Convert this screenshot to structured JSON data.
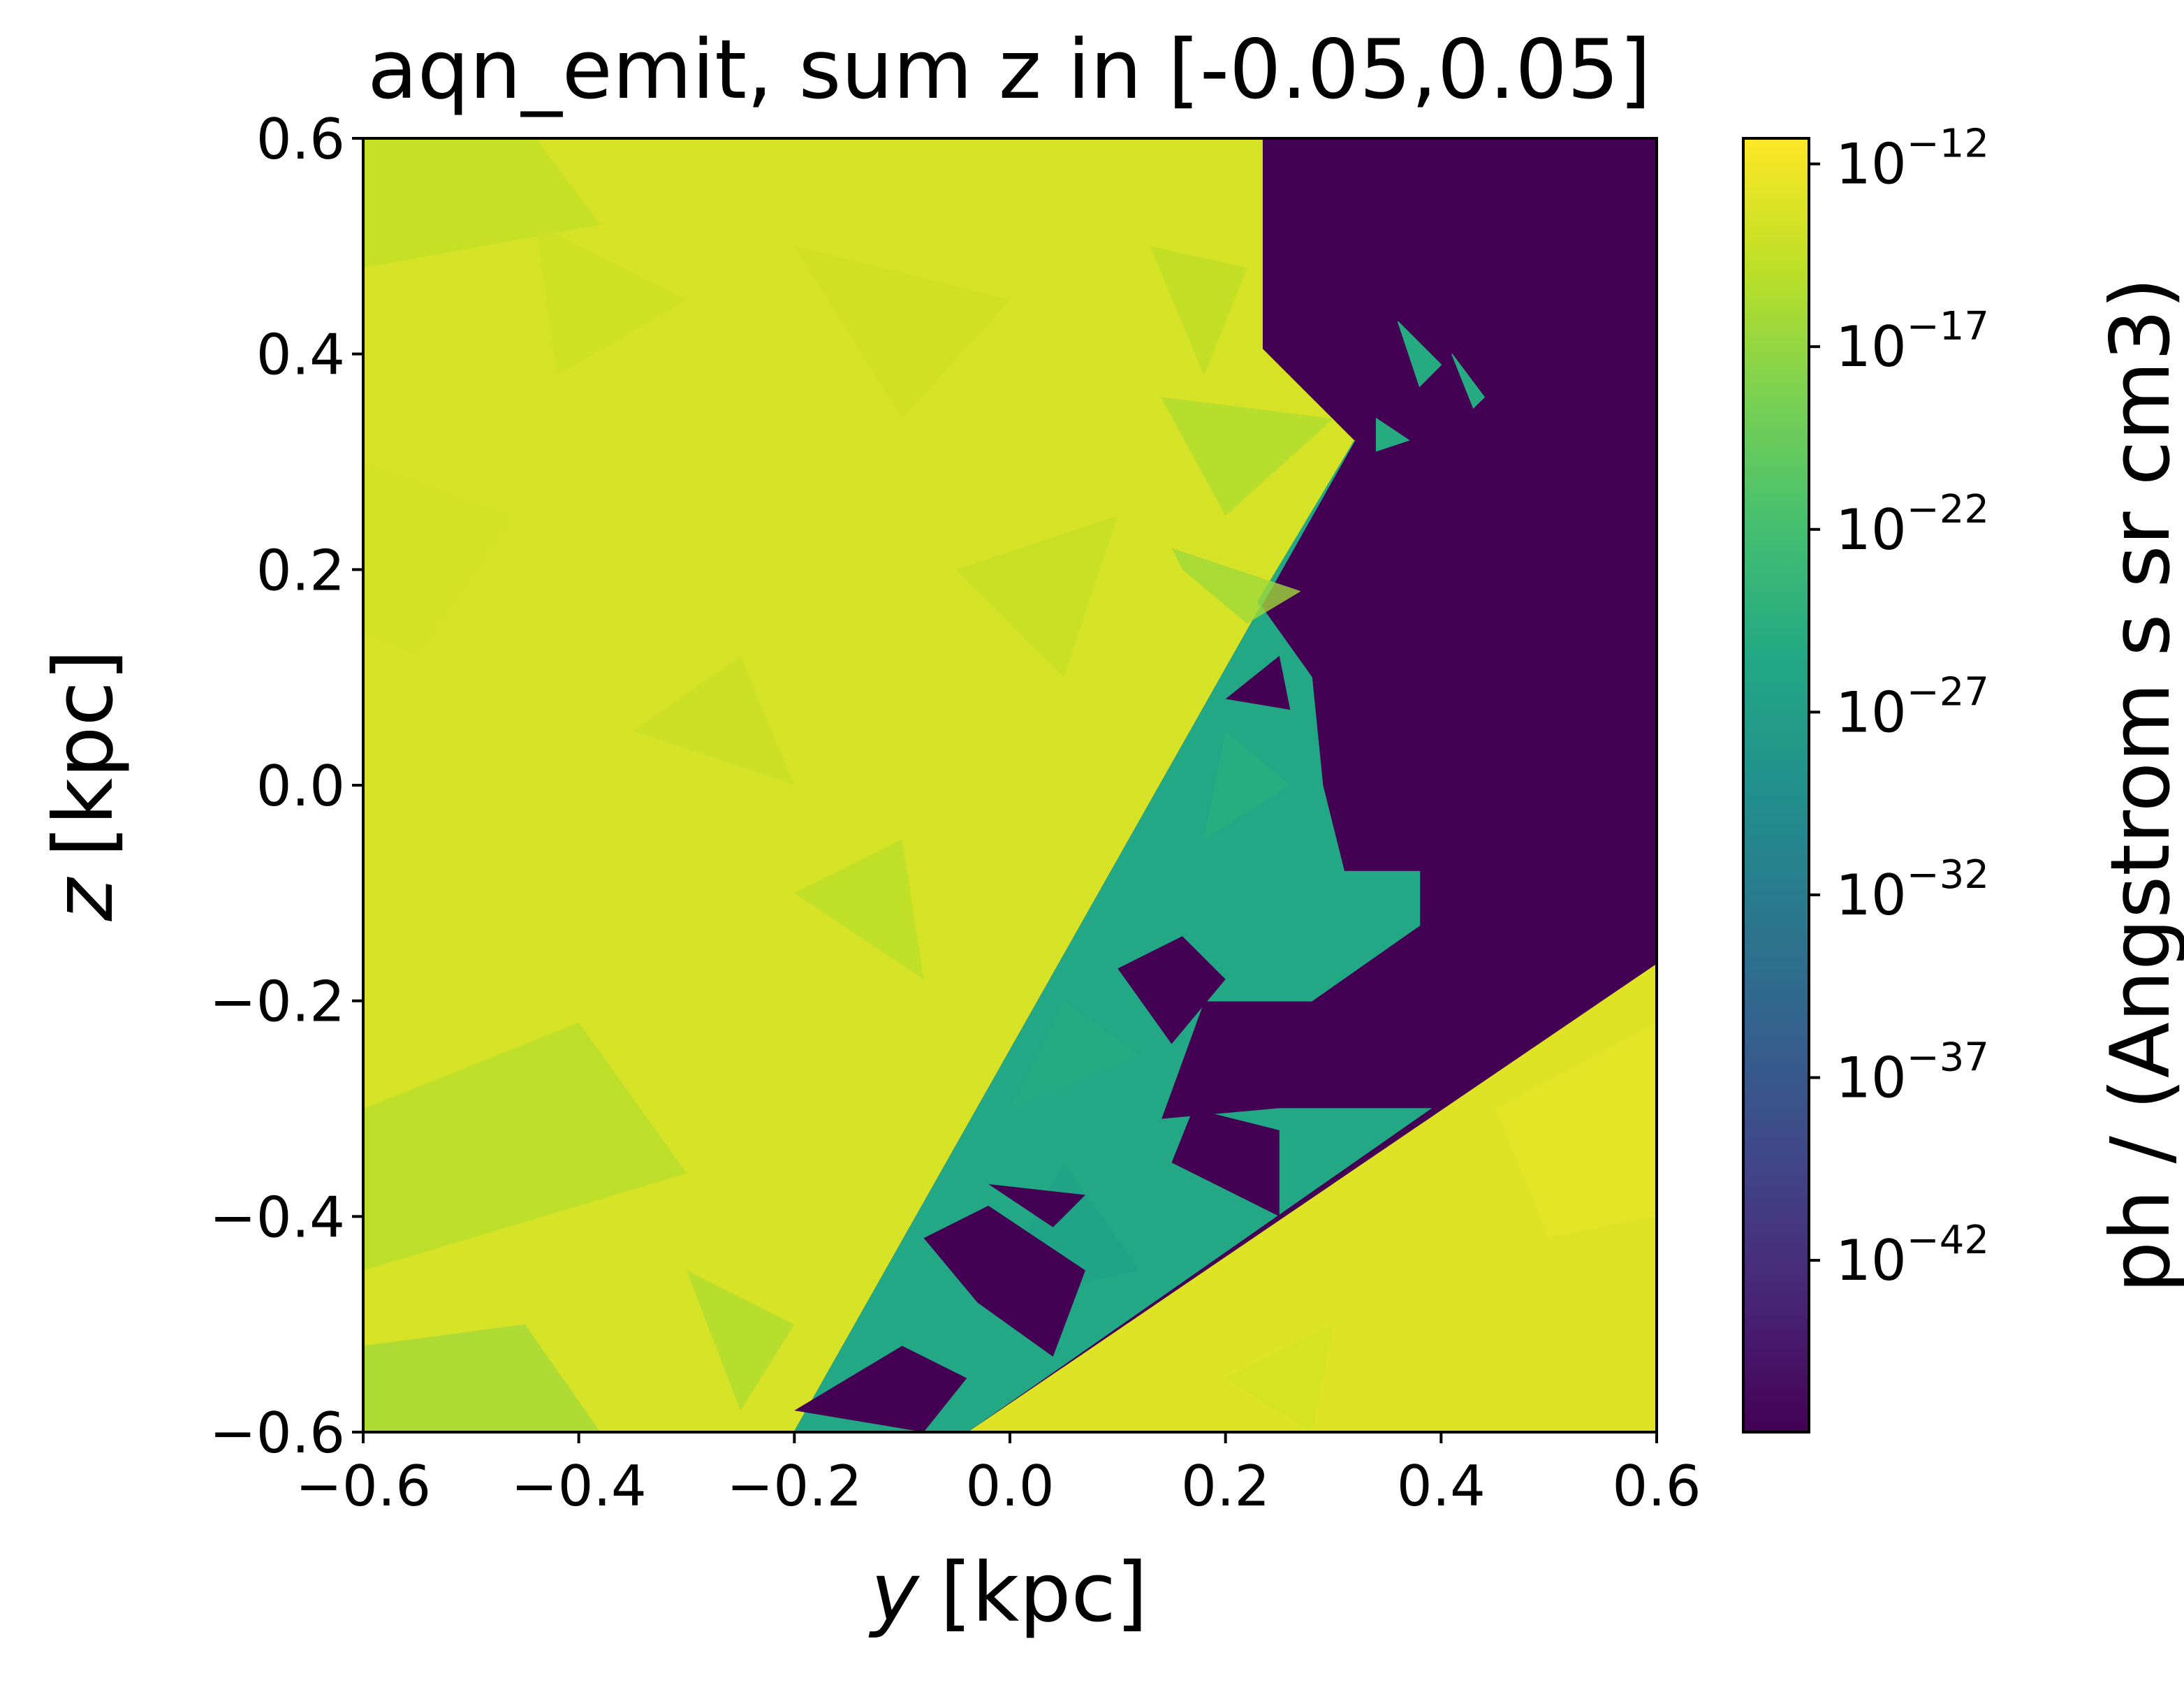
{
  "chart_data": {
    "type": "heatmap",
    "title": "aqn_emit, sum z in [-0.05,0.05]",
    "xlabel_var": "y",
    "xlabel_unit": "[kpc]",
    "ylabel_var": "z",
    "ylabel_unit": "[kpc]",
    "xlim": [
      -0.6,
      0.6
    ],
    "ylim": [
      -0.6,
      0.6
    ],
    "xticks": [
      -0.6,
      -0.4,
      -0.2,
      0.0,
      0.2,
      0.4,
      0.6
    ],
    "yticks": [
      -0.6,
      -0.4,
      -0.2,
      0.0,
      0.2,
      0.4,
      0.6
    ],
    "xtick_labels": [
      "−0.6",
      "−0.4",
      "−0.2",
      "0.0",
      "0.2",
      "0.4",
      "0.6"
    ],
    "ytick_labels": [
      "−0.6",
      "−0.4",
      "−0.2",
      "0.0",
      "0.2",
      "0.4",
      "0.6"
    ],
    "colormap": "viridis",
    "colorbar": {
      "label": "ph / (Angstrom s sr cm3)",
      "scale": "log",
      "exponent_range": [
        -46.7,
        -11.3
      ],
      "tick_exponents": [
        -12,
        -17,
        -22,
        -27,
        -32,
        -37,
        -42
      ],
      "tick_base": "10",
      "tick_exponent_labels": [
        "−12",
        "−17",
        "−22",
        "−27",
        "−32",
        "−37",
        "−42"
      ]
    },
    "regions": [
      {
        "name": "upper-left high emission",
        "log_value": -13.5,
        "polygon": [
          [
            -0.6,
            0.6
          ],
          [
            0.235,
            0.6
          ],
          [
            0.235,
            0.405
          ],
          [
            0.32,
            0.32
          ],
          [
            -0.2,
            -0.6
          ],
          [
            -0.6,
            -0.6
          ]
        ]
      },
      {
        "name": "lower-right high emission",
        "log_value": -13.0,
        "polygon": [
          [
            0.6,
            -0.165
          ],
          [
            0.6,
            -0.6
          ],
          [
            -0.04,
            -0.6
          ]
        ]
      },
      {
        "name": "empty region",
        "log_value": -46.7,
        "polygon": [
          [
            0.235,
            0.6
          ],
          [
            0.6,
            0.6
          ],
          [
            0.6,
            -0.165
          ],
          [
            -0.04,
            -0.6
          ],
          [
            -0.2,
            -0.6
          ],
          [
            0.32,
            0.32
          ],
          [
            0.235,
            0.405
          ]
        ]
      },
      {
        "name": "transition band",
        "log_value": -25.5,
        "polygon": [
          [
            0.32,
            0.32
          ],
          [
            0.23,
            0.17
          ],
          [
            0.28,
            0.1
          ],
          [
            0.29,
            0.0
          ],
          [
            0.31,
            -0.08
          ],
          [
            0.38,
            -0.08
          ],
          [
            0.38,
            -0.13
          ],
          [
            0.28,
            -0.2
          ],
          [
            0.18,
            -0.2
          ],
          [
            0.14,
            -0.31
          ],
          [
            0.25,
            -0.3
          ],
          [
            0.39,
            -0.3
          ],
          [
            -0.04,
            -0.6
          ],
          [
            -0.2,
            -0.6
          ]
        ]
      },
      {
        "name": "patch",
        "log_value": -25.0,
        "polygon": [
          [
            0.36,
            0.43
          ],
          [
            0.4,
            0.39
          ],
          [
            0.38,
            0.37
          ]
        ]
      },
      {
        "name": "patch",
        "log_value": -25.0,
        "polygon": [
          [
            0.41,
            0.4
          ],
          [
            0.43,
            0.35
          ],
          [
            0.44,
            0.36
          ]
        ]
      },
      {
        "name": "patch",
        "log_value": -25.0,
        "polygon": [
          [
            0.34,
            0.34
          ],
          [
            0.37,
            0.32
          ],
          [
            0.34,
            0.31
          ]
        ]
      }
    ],
    "noise_patches": [
      {
        "poly": [
          [
            -0.6,
            0.6
          ],
          [
            -0.44,
            0.6
          ],
          [
            -0.38,
            0.52
          ],
          [
            -0.6,
            0.48
          ]
        ],
        "log_value": -14.6
      },
      {
        "poly": [
          [
            -0.44,
            0.52
          ],
          [
            -0.3,
            0.45
          ],
          [
            -0.42,
            0.38
          ]
        ],
        "log_value": -14.0
      },
      {
        "poly": [
          [
            -0.6,
            0.3
          ],
          [
            -0.46,
            0.25
          ],
          [
            -0.55,
            0.12
          ],
          [
            -0.6,
            0.14
          ]
        ],
        "log_value": -13.6
      },
      {
        "poly": [
          [
            -0.2,
            0.5
          ],
          [
            0.0,
            0.45
          ],
          [
            -0.1,
            0.34
          ]
        ],
        "log_value": -13.9
      },
      {
        "poly": [
          [
            -0.05,
            0.2
          ],
          [
            0.1,
            0.25
          ],
          [
            0.05,
            0.1
          ]
        ],
        "log_value": -14.4
      },
      {
        "poly": [
          [
            0.13,
            0.5
          ],
          [
            0.22,
            0.48
          ],
          [
            0.18,
            0.38
          ]
        ],
        "log_value": -14.8
      },
      {
        "poly": [
          [
            0.14,
            0.36
          ],
          [
            0.3,
            0.34
          ],
          [
            0.2,
            0.25
          ]
        ],
        "log_value": -15.6
      },
      {
        "poly": [
          [
            0.15,
            0.22
          ],
          [
            0.27,
            0.18
          ],
          [
            0.22,
            0.15
          ],
          [
            0.16,
            0.2
          ]
        ],
        "log_value": -16.4
      },
      {
        "poly": [
          [
            -0.6,
            -0.3
          ],
          [
            -0.4,
            -0.22
          ],
          [
            -0.3,
            -0.36
          ],
          [
            -0.6,
            -0.45
          ]
        ],
        "log_value": -15.2
      },
      {
        "poly": [
          [
            -0.6,
            -0.52
          ],
          [
            -0.45,
            -0.5
          ],
          [
            -0.38,
            -0.6
          ],
          [
            -0.6,
            -0.6
          ]
        ],
        "log_value": -16.2
      },
      {
        "poly": [
          [
            -0.3,
            -0.45
          ],
          [
            -0.2,
            -0.5
          ],
          [
            -0.25,
            -0.58
          ]
        ],
        "log_value": -15.6
      },
      {
        "poly": [
          [
            -0.2,
            -0.1
          ],
          [
            -0.1,
            -0.05
          ],
          [
            -0.08,
            -0.18
          ]
        ],
        "log_value": -15.0
      },
      {
        "poly": [
          [
            -0.35,
            0.05
          ],
          [
            -0.25,
            0.12
          ],
          [
            -0.2,
            0.0
          ]
        ],
        "log_value": -14.2
      },
      {
        "poly": [
          [
            0.05,
            -0.2
          ],
          [
            0.12,
            -0.25
          ],
          [
            0.0,
            -0.3
          ]
        ],
        "log_value": -25.0
      },
      {
        "poly": [
          [
            0.05,
            -0.35
          ],
          [
            0.12,
            -0.45
          ],
          [
            -0.02,
            -0.48
          ]
        ],
        "log_value": -26.5
      },
      {
        "poly": [
          [
            0.2,
            0.05
          ],
          [
            0.26,
            0.0
          ],
          [
            0.18,
            -0.05
          ]
        ],
        "log_value": -24.5
      },
      {
        "poly": [
          [
            0.45,
            -0.3
          ],
          [
            0.6,
            -0.22
          ],
          [
            0.6,
            -0.4
          ],
          [
            0.5,
            -0.42
          ]
        ],
        "log_value": -12.8
      },
      {
        "poly": [
          [
            0.2,
            -0.55
          ],
          [
            0.3,
            -0.5
          ],
          [
            0.28,
            -0.6
          ]
        ],
        "log_value": -13.6
      }
    ],
    "dark_holes": [
      {
        "poly": [
          [
            0.1,
            -0.17
          ],
          [
            0.16,
            -0.14
          ],
          [
            0.2,
            -0.18
          ],
          [
            0.15,
            -0.24
          ]
        ]
      },
      {
        "poly": [
          [
            -0.08,
            -0.42
          ],
          [
            -0.02,
            -0.39
          ],
          [
            0.07,
            -0.45
          ],
          [
            0.04,
            -0.53
          ],
          [
            -0.03,
            -0.48
          ]
        ]
      },
      {
        "poly": [
          [
            -0.02,
            -0.37
          ],
          [
            0.07,
            -0.38
          ],
          [
            0.04,
            -0.41
          ]
        ]
      },
      {
        "poly": [
          [
            -0.2,
            -0.58
          ],
          [
            -0.08,
            -0.6
          ],
          [
            -0.04,
            -0.55
          ],
          [
            -0.1,
            -0.52
          ]
        ]
      },
      {
        "poly": [
          [
            0.17,
            -0.3
          ],
          [
            0.25,
            -0.32
          ],
          [
            0.25,
            -0.4
          ],
          [
            0.15,
            -0.35
          ]
        ]
      },
      {
        "poly": [
          [
            0.2,
            0.08
          ],
          [
            0.25,
            0.12
          ],
          [
            0.26,
            0.07
          ]
        ]
      }
    ]
  }
}
